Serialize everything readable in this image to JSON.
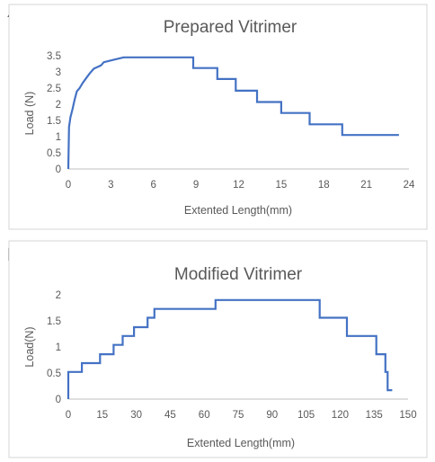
{
  "panel_labels": {
    "a": "A",
    "b": "B"
  },
  "chart_data": [
    {
      "type": "line",
      "title": "Prepared Vitrimer",
      "xlabel": "Extented Length(mm)",
      "ylabel": "Load (N)",
      "xlim": [
        0,
        24
      ],
      "ylim": [
        0,
        3.5
      ],
      "xticks": [
        "0",
        "3",
        "6",
        "9",
        "12",
        "15",
        "18",
        "21",
        "24"
      ],
      "yticks": [
        "0",
        "0.5",
        "1",
        "1.5",
        "2",
        "2.5",
        "3",
        "3.5"
      ],
      "color": "#4472c4",
      "series": [
        {
          "x": [
            0,
            0.05,
            0.15,
            0.3,
            0.45,
            0.6,
            0.8,
            1.0,
            1.25,
            1.5,
            1.8,
            2.3,
            2.5,
            3.9,
            8.8,
            8.8,
            10.5,
            10.5,
            11.8,
            11.8,
            13.3,
            13.3,
            15.0,
            15.0,
            17.0,
            17.0,
            19.3,
            19.3,
            23.3
          ],
          "y": [
            0,
            1.3,
            1.6,
            1.85,
            2.15,
            2.4,
            2.5,
            2.65,
            2.8,
            2.95,
            3.1,
            3.2,
            3.3,
            3.45,
            3.45,
            3.12,
            3.12,
            2.78,
            2.78,
            2.42,
            2.42,
            2.07,
            2.07,
            1.73,
            1.73,
            1.38,
            1.38,
            1.05,
            1.05
          ]
        }
      ]
    },
    {
      "type": "line",
      "title": "Modified Vitrimer",
      "xlabel": "Extented Length(mm)",
      "ylabel": "Load(N)",
      "xlim": [
        0,
        150
      ],
      "ylim": [
        0,
        2
      ],
      "xticks": [
        "0",
        "15",
        "30",
        "45",
        "60",
        "75",
        "90",
        "105",
        "120",
        "135",
        "150"
      ],
      "yticks": [
        "0",
        "0.5",
        "1",
        "1.5",
        "2"
      ],
      "color": "#4472c4",
      "series": [
        {
          "x": [
            0,
            0,
            6,
            6,
            14,
            14,
            20,
            20,
            24,
            24,
            29,
            29,
            35,
            35,
            38,
            38,
            65,
            65,
            111,
            111,
            123,
            123,
            136,
            136,
            140,
            140,
            141,
            141,
            143
          ],
          "y": [
            0,
            0.52,
            0.52,
            0.69,
            0.69,
            0.86,
            0.86,
            1.04,
            1.04,
            1.21,
            1.21,
            1.38,
            1.38,
            1.56,
            1.56,
            1.73,
            1.73,
            1.9,
            1.9,
            1.56,
            1.56,
            1.21,
            1.21,
            0.86,
            0.86,
            0.52,
            0.52,
            0.17,
            0.17
          ]
        }
      ]
    }
  ]
}
